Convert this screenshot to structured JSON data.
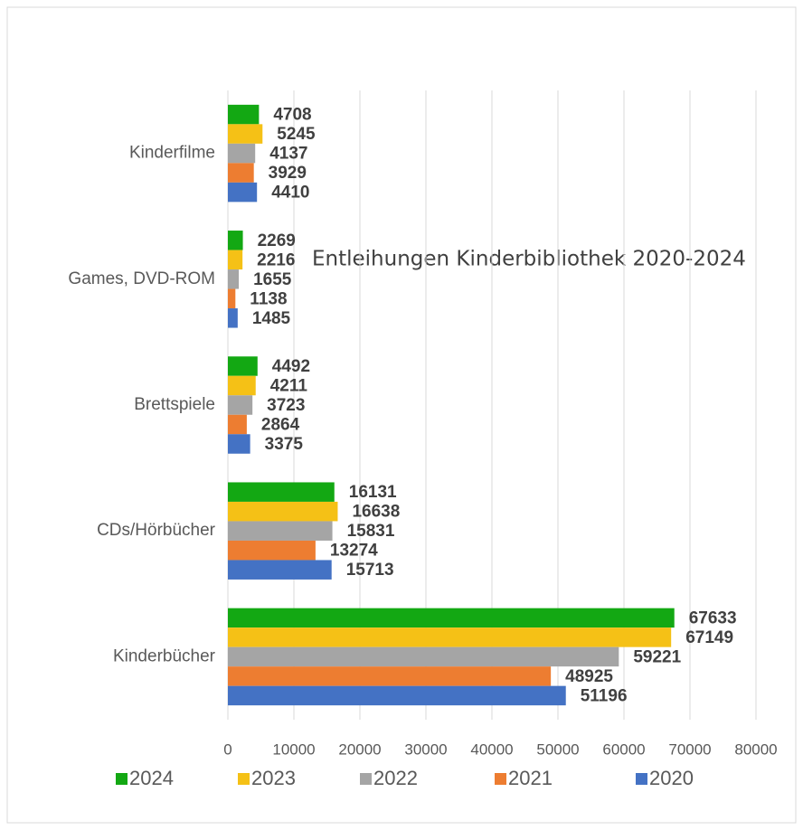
{
  "chart_data": {
    "type": "bar",
    "orientation": "horizontal",
    "title": "Entleihungen Kinderbibliothek 2020-2024",
    "categories": [
      "Kinderfilme",
      "Games, DVD-ROM",
      "Brettspiele",
      "CDs/Hörbücher",
      "Kinderbücher"
    ],
    "series": [
      {
        "name": "2024",
        "color": "#13a813",
        "values": [
          4708,
          2269,
          4492,
          16131,
          67633
        ]
      },
      {
        "name": "2023",
        "color": "#f5c116",
        "values": [
          5245,
          2216,
          4211,
          16638,
          67149
        ]
      },
      {
        "name": "2022",
        "color": "#a5a5a5",
        "values": [
          4137,
          1655,
          3723,
          15831,
          59221
        ]
      },
      {
        "name": "2021",
        "color": "#ed7d31",
        "values": [
          3929,
          1138,
          2864,
          13274,
          48925
        ]
      },
      {
        "name": "2020",
        "color": "#4472c4",
        "values": [
          4410,
          1485,
          3375,
          15713,
          51196
        ]
      }
    ],
    "xlim": [
      0,
      80000
    ],
    "xticks": [
      0,
      10000,
      20000,
      30000,
      40000,
      50000,
      60000,
      70000,
      80000
    ],
    "grid": true,
    "legend": "bottom"
  }
}
